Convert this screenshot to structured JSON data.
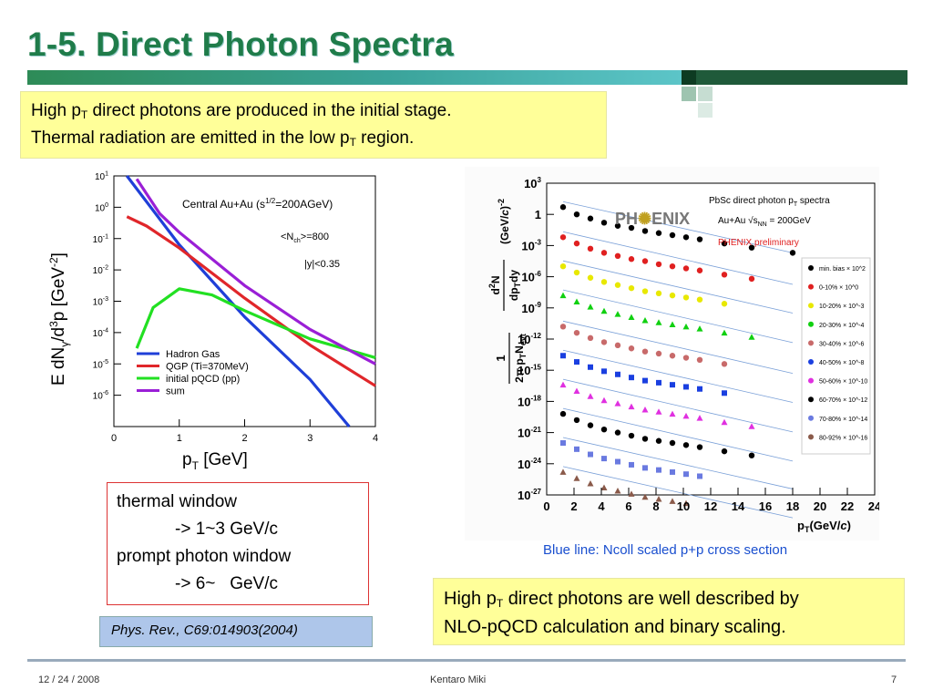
{
  "slide": {
    "title": "1-5. Direct Photon Spectra",
    "box_top": {
      "line1_a": "High p",
      "line1_sub": "T",
      "line1_b": " direct photons are produced in the initial stage.",
      "line2_a": "Thermal radiation are emitted in the low p",
      "line2_sub": "T",
      "line2_b": " region."
    },
    "windows_box": {
      "line1": "thermal window",
      "line2": "-> 1~3 GeV/c",
      "line3": "prompt photon window",
      "line4": "-> 6~   GeV/c"
    },
    "reference": "Phys. Rev., C69:014903(2004)",
    "blue_note": "Blue line: Ncoll scaled p+p cross section",
    "box_bottom": {
      "line1_a": "High p",
      "line1_sub": "T",
      "line1_b": " direct photons are well described by",
      "line2": "NLO-pQCD calculation and binary scaling."
    },
    "footer": {
      "date": "12 / 24 / 2008",
      "author": "Kentaro Miki",
      "page": "7"
    },
    "colors": {
      "title": "#1f7c4a",
      "highlight": "#ffff99",
      "ref_box": "#aec6ea",
      "blue_note": "#1a4fcf"
    }
  },
  "chart_data": [
    {
      "type": "line",
      "title": "Central Au+Au (s^1/2=200AGeV)",
      "annotations": [
        "<Nch>=800",
        "|y|<0.35"
      ],
      "xlabel": "pT [GeV]",
      "ylabel": "E dNγ/d3p [GeV-2]",
      "xlim": [
        0,
        4
      ],
      "ylim_log10": [
        -7,
        1
      ],
      "x_ticks": [
        "0",
        "1",
        "2",
        "3",
        "4"
      ],
      "y_ticks": [
        "10^1",
        "10^0",
        "10^-1",
        "10^-2",
        "10^-3",
        "10^-4",
        "10^-5",
        "10^-6"
      ],
      "legend_position": "bottom-left",
      "series": [
        {
          "name": "Hadron Gas",
          "color": "#1f3fd8",
          "x": [
            0.2,
            1.0,
            2.0,
            3.0,
            3.6
          ],
          "log10_y": [
            1.2,
            -1.2,
            -3.5,
            -5.5,
            -7.0
          ]
        },
        {
          "name": "QGP (Ti=370MeV)",
          "color": "#e0262a",
          "x": [
            0.2,
            0.5,
            1.0,
            2.0,
            3.0,
            4.0
          ],
          "log10_y": [
            -0.3,
            -0.6,
            -1.3,
            -2.9,
            -4.4,
            -5.7
          ]
        },
        {
          "name": "initial pQCD (pp)",
          "color": "#22e022",
          "x": [
            0.35,
            0.6,
            1.0,
            1.5,
            2.0,
            3.0,
            4.0
          ],
          "log10_y": [
            -4.5,
            -3.2,
            -2.6,
            -2.8,
            -3.3,
            -4.2,
            -4.8
          ]
        },
        {
          "name": "sum",
          "color": "#9a1fd6",
          "x": [
            0.35,
            0.7,
            1.0,
            2.0,
            3.0,
            4.0
          ],
          "log10_y": [
            0.9,
            -0.2,
            -0.8,
            -2.5,
            -3.9,
            -5.0
          ]
        }
      ]
    },
    {
      "type": "scatter",
      "title": "PbSc direct photon pT spectra",
      "subtitle": "Au+Au √sNN = 200GeV",
      "label_red": "PHENIX preliminary",
      "logo": "PHENIX",
      "xlabel": "pT(GeV/c)",
      "ylabel": "1/(2π pT Nevt) d2N/dpTdy (GeV/c)-2",
      "xlim": [
        0,
        24
      ],
      "ylim_log10": [
        -27,
        3
      ],
      "x_ticks": [
        "0",
        "2",
        "4",
        "6",
        "8",
        "10",
        "12",
        "14",
        "16",
        "18",
        "20",
        "22",
        "24"
      ],
      "y_ticks": [
        "10^3",
        "1",
        "10^-3",
        "10^-6",
        "10^-9",
        "10^-12",
        "10^-15",
        "10^-18",
        "10^-21",
        "10^-24",
        "10^-27"
      ],
      "legend_position": "right",
      "series": [
        {
          "name": "min. bias × 10^2",
          "color": "#000000",
          "x": [
            1.2,
            2.2,
            3.2,
            4.2,
            5.2,
            6.2,
            7.2,
            8.2,
            9.2,
            10.2,
            11.2,
            13,
            15,
            18
          ],
          "log10_y": [
            0.7,
            0.0,
            -0.4,
            -0.8,
            -1.1,
            -1.3,
            -1.6,
            -1.8,
            -2.0,
            -2.2,
            -2.4,
            -2.8,
            -3.2,
            -3.7
          ]
        },
        {
          "name": "0-10% × 10^0",
          "color": "#e02020",
          "x": [
            1.2,
            2.2,
            3.2,
            4.2,
            5.2,
            6.2,
            7.2,
            8.2,
            9.2,
            10.2,
            11.2,
            13,
            15
          ],
          "log10_y": [
            -2.2,
            -2.8,
            -3.3,
            -3.7,
            -4.0,
            -4.3,
            -4.5,
            -4.8,
            -5.0,
            -5.2,
            -5.4,
            -5.8,
            -6.2
          ]
        },
        {
          "name": "10-20% × 10^-3",
          "color": "#e8e800",
          "x": [
            1.2,
            2.2,
            3.2,
            4.2,
            5.2,
            6.2,
            7.2,
            8.2,
            9.2,
            10.2,
            11.2,
            13
          ],
          "log10_y": [
            -5.0,
            -5.6,
            -6.1,
            -6.5,
            -6.8,
            -7.1,
            -7.4,
            -7.6,
            -7.8,
            -8.0,
            -8.2,
            -8.6
          ]
        },
        {
          "name": "20-30% × 10^-4",
          "color": "#10d010",
          "x": [
            1.2,
            2.2,
            3.2,
            4.2,
            5.2,
            6.2,
            7.2,
            8.2,
            9.2,
            10.2,
            11.2,
            13,
            15
          ],
          "log10_y": [
            -7.8,
            -8.4,
            -8.9,
            -9.3,
            -9.6,
            -9.9,
            -10.2,
            -10.4,
            -10.6,
            -10.8,
            -11.0,
            -11.4,
            -11.8
          ]
        },
        {
          "name": "30-40% × 10^-6",
          "color": "#c86a6a",
          "x": [
            1.2,
            2.2,
            3.2,
            4.2,
            5.2,
            6.2,
            7.2,
            8.2,
            9.2,
            10.2,
            11.2,
            13
          ],
          "log10_y": [
            -10.8,
            -11.4,
            -11.9,
            -12.3,
            -12.6,
            -12.9,
            -13.2,
            -13.4,
            -13.6,
            -13.8,
            -14.0,
            -14.4
          ]
        },
        {
          "name": "40-50% × 10^-8",
          "color": "#1a3fe0",
          "x": [
            1.2,
            2.2,
            3.2,
            4.2,
            5.2,
            6.2,
            7.2,
            8.2,
            9.2,
            10.2,
            11.2,
            13
          ],
          "log10_y": [
            -13.6,
            -14.2,
            -14.7,
            -15.1,
            -15.4,
            -15.7,
            -16.0,
            -16.2,
            -16.4,
            -16.6,
            -16.8,
            -17.2
          ]
        },
        {
          "name": "50-60% × 10^-10",
          "color": "#e030e0",
          "x": [
            1.2,
            2.2,
            3.2,
            4.2,
            5.2,
            6.2,
            7.2,
            8.2,
            9.2,
            10.2,
            11.2,
            13,
            15
          ],
          "log10_y": [
            -16.4,
            -17.0,
            -17.5,
            -17.9,
            -18.2,
            -18.5,
            -18.8,
            -19.0,
            -19.2,
            -19.4,
            -19.6,
            -20.0,
            -20.4
          ]
        },
        {
          "name": "60-70% × 10^-12",
          "color": "#000000",
          "x": [
            1.2,
            2.2,
            3.2,
            4.2,
            5.2,
            6.2,
            7.2,
            8.2,
            9.2,
            10.2,
            11.2,
            13,
            15
          ],
          "log10_y": [
            -19.2,
            -19.8,
            -20.3,
            -20.7,
            -21.0,
            -21.3,
            -21.6,
            -21.8,
            -22.0,
            -22.2,
            -22.4,
            -22.8,
            -23.2
          ]
        },
        {
          "name": "70-80% × 10^-14",
          "color": "#6a7ae0",
          "x": [
            1.2,
            2.2,
            3.2,
            4.2,
            5.2,
            6.2,
            7.2,
            8.2,
            9.2,
            10.2,
            11.2
          ],
          "log10_y": [
            -22.0,
            -22.6,
            -23.1,
            -23.5,
            -23.8,
            -24.1,
            -24.4,
            -24.6,
            -24.8,
            -25.0,
            -25.2
          ]
        },
        {
          "name": "80-92% × 10^-16",
          "color": "#8a5a4a",
          "x": [
            1.2,
            2.2,
            3.2,
            4.2,
            5.2,
            6.2,
            7.2,
            8.2,
            9.2,
            10.2
          ],
          "log10_y": [
            -24.8,
            -25.4,
            -25.9,
            -26.3,
            -26.6,
            -26.9,
            -27.2,
            -27.4,
            -27.6,
            -27.8
          ]
        }
      ]
    }
  ]
}
